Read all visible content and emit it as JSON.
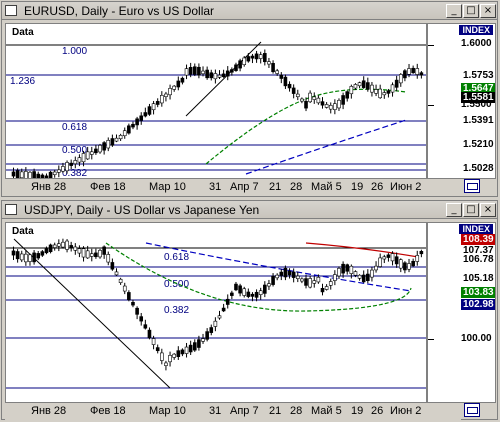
{
  "panes": [
    {
      "title": "EURUSD, Daily - Euro vs US Dollar",
      "data_label": "Data",
      "index_label": "INDEX",
      "price_levels": [
        "1.6000",
        "1.5500"
      ],
      "price_boxes": [
        {
          "text": "1.5753",
          "bg": "#ffffff",
          "fg": "#000000"
        },
        {
          "text": "1.5647",
          "bg": "#008000",
          "fg": "#ffffff"
        },
        {
          "text": "1.5581",
          "bg": "#ffffff",
          "fg": "#000000"
        },
        {
          "text": "1.5391",
          "bg": "#ffffff",
          "fg": "#000000"
        },
        {
          "text": "1.5210",
          "bg": "#ffffff",
          "fg": "#000000"
        },
        {
          "text": "1.5028",
          "bg": "#ffffff",
          "fg": "#000000"
        }
      ],
      "fib_labels": [
        "1.000",
        "1.236",
        "0.618",
        "0.500",
        "0.382"
      ],
      "x_labels": [
        "Янв 28",
        "Фев 18",
        "Мар 10",
        "31",
        "Апр 7",
        "21",
        "28",
        "Май 5",
        "19",
        "26",
        "Июн 2"
      ]
    },
    {
      "title": "USDJPY, Daily - US Dollar vs Japanese Yen",
      "data_label": "Data",
      "index_label": "INDEX",
      "price_levels": [
        "100.00"
      ],
      "price_boxes": [
        {
          "text": "108.39",
          "bg": "#c00000",
          "fg": "#ffffff"
        },
        {
          "text": "107.37",
          "bg": "#ffffff",
          "fg": "#000000"
        },
        {
          "text": "106.78",
          "bg": "#ffffff",
          "fg": "#000000"
        },
        {
          "text": "105.18",
          "bg": "#ffffff",
          "fg": "#000000"
        },
        {
          "text": "103.83",
          "bg": "#008000",
          "fg": "#ffffff"
        },
        {
          "text": "102.98",
          "bg": "#ffffff",
          "fg": "#000000"
        }
      ],
      "fib_labels": [
        "0.618",
        "0.500",
        "0.382"
      ],
      "x_labels": [
        "Янв 28",
        "Фев 18",
        "Мар 10",
        "31",
        "Апр 7",
        "21",
        "28",
        "Май 5",
        "19",
        "26",
        "Июн 2"
      ]
    }
  ],
  "colors": {
    "up": "#ffffff",
    "down": "#000000",
    "ma_green": "#008000",
    "ma_blue": "#0000c0",
    "ma_red": "#c00000",
    "fib": "#000080"
  },
  "icons": [
    "restore-icon",
    "maximize-icon",
    "close-icon"
  ]
}
